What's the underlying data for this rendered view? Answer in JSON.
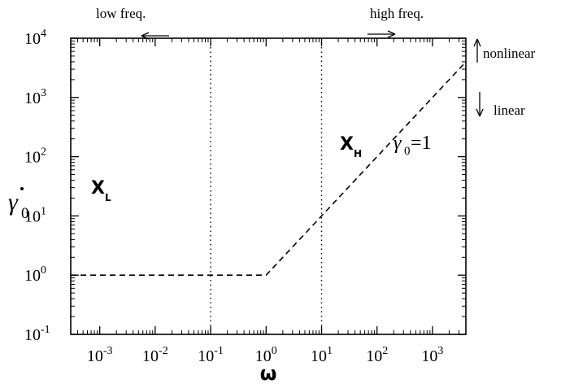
{
  "chart_data": {
    "type": "line",
    "title": "",
    "xlabel": "ω",
    "ylabel_base": "γ",
    "ylabel_sub": "0",
    "x_scale": "log",
    "y_scale": "log",
    "xlim": [
      0.0003,
      4000
    ],
    "ylim": [
      0.1,
      10000
    ],
    "x_ticks": [
      {
        "value": 0.001,
        "base": "10",
        "exp": "-3"
      },
      {
        "value": 0.01,
        "base": "10",
        "exp": "-2"
      },
      {
        "value": 0.1,
        "base": "10",
        "exp": "-1"
      },
      {
        "value": 1,
        "base": "10",
        "exp": "0"
      },
      {
        "value": 10,
        "base": "10",
        "exp": "1"
      },
      {
        "value": 100,
        "base": "10",
        "exp": "2"
      },
      {
        "value": 1000,
        "base": "10",
        "exp": "3"
      }
    ],
    "y_ticks": [
      {
        "value": 0.1,
        "base": "10",
        "exp": "-1"
      },
      {
        "value": 1,
        "base": "10",
        "exp": "0"
      },
      {
        "value": 10,
        "base": "10",
        "exp": "1"
      },
      {
        "value": 100,
        "base": "10",
        "exp": "2"
      },
      {
        "value": 1000,
        "base": "10",
        "exp": "3"
      },
      {
        "value": 10000,
        "base": "10",
        "exp": "4"
      }
    ],
    "series": [
      {
        "style": "dashed",
        "x": [
          0.0003,
          1,
          4000
        ],
        "y": [
          1,
          1,
          4000
        ]
      }
    ],
    "vertical_lines": [
      {
        "x": 0.1,
        "style": "dotted"
      },
      {
        "x": 10,
        "style": "dotted"
      }
    ],
    "annotations": {
      "low_freq": "low freq.",
      "high_freq": "high freq.",
      "nonlinear": "nonlinear",
      "linear": "linear",
      "region_low_base": "X",
      "region_low_sub": "L",
      "region_high_base": "X",
      "region_high_sub": "H",
      "line_label_base": "γ",
      "line_label_sub": "0",
      "line_label_rest": "=1"
    },
    "grid": false,
    "legend": "none"
  }
}
